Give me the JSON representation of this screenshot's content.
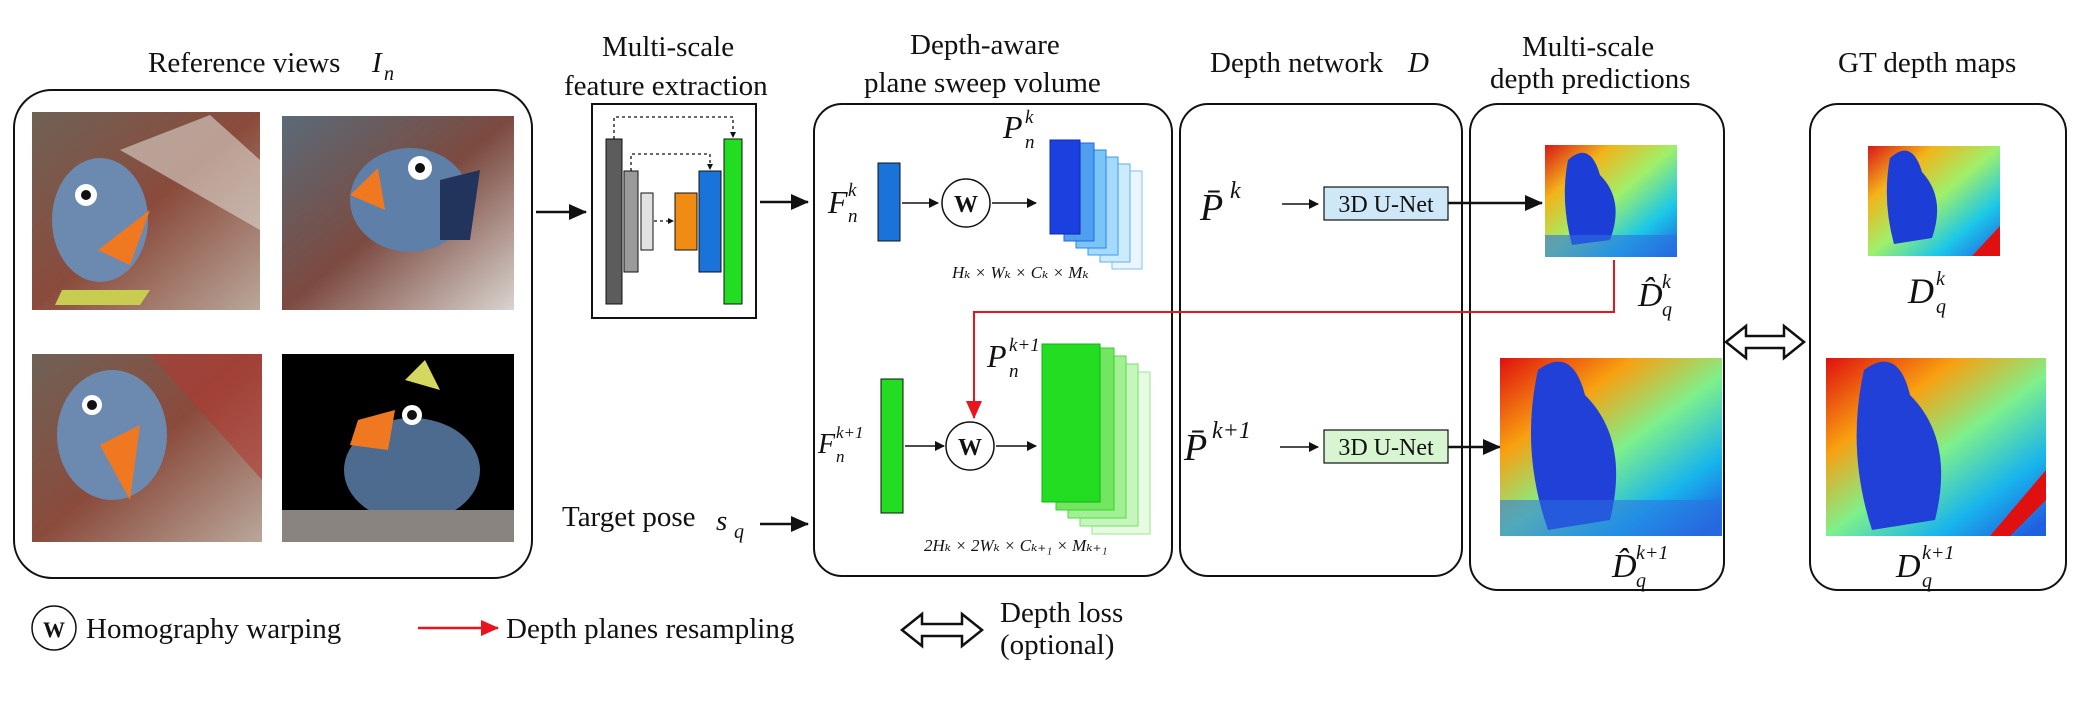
{
  "titles": {
    "reference": "Reference views",
    "reference_math": "I",
    "reference_sub": "n",
    "feature_1": "Multi-scale",
    "feature_2": "feature extraction",
    "psv_1": "Depth-aware",
    "psv_2": "plane sweep volume",
    "depthnet": "Depth network",
    "depthnet_math": "D",
    "pred_1": "Multi-scale",
    "pred_2": "depth predictions",
    "gt": "GT depth maps"
  },
  "psv": {
    "F": "F",
    "n": "n",
    "k": "k",
    "k1": "k+1",
    "P": "P",
    "W": "W",
    "dims_k": "Hₖ × Wₖ × Cₖ × Mₖ",
    "dims_k1": "2Hₖ × 2Wₖ × Cₖ₊₁ × Mₖ₊₁"
  },
  "network": {
    "unet": "3D U-Net",
    "Pbar": "P̄"
  },
  "pred": {
    "D": "D̂",
    "q": "q",
    "k": "k",
    "k1": "k+1"
  },
  "gt": {
    "D": "D",
    "q": "q",
    "k": "k",
    "k1": "k+1"
  },
  "target_pose": "Target pose",
  "target_math": "s",
  "target_sub": "q",
  "legend": {
    "w_symbol": "W",
    "homography": "Homography warping",
    "resampling": "Depth planes resampling",
    "loss_1": "Depth loss",
    "loss_2": "(optional)"
  },
  "colors": {
    "blue": "#1a73d9",
    "green": "#22dd22",
    "orange": "#f08c14",
    "red": "#e8141e",
    "unet_blue": "#cfe8f8",
    "unet_green": "#d6f5d0"
  }
}
